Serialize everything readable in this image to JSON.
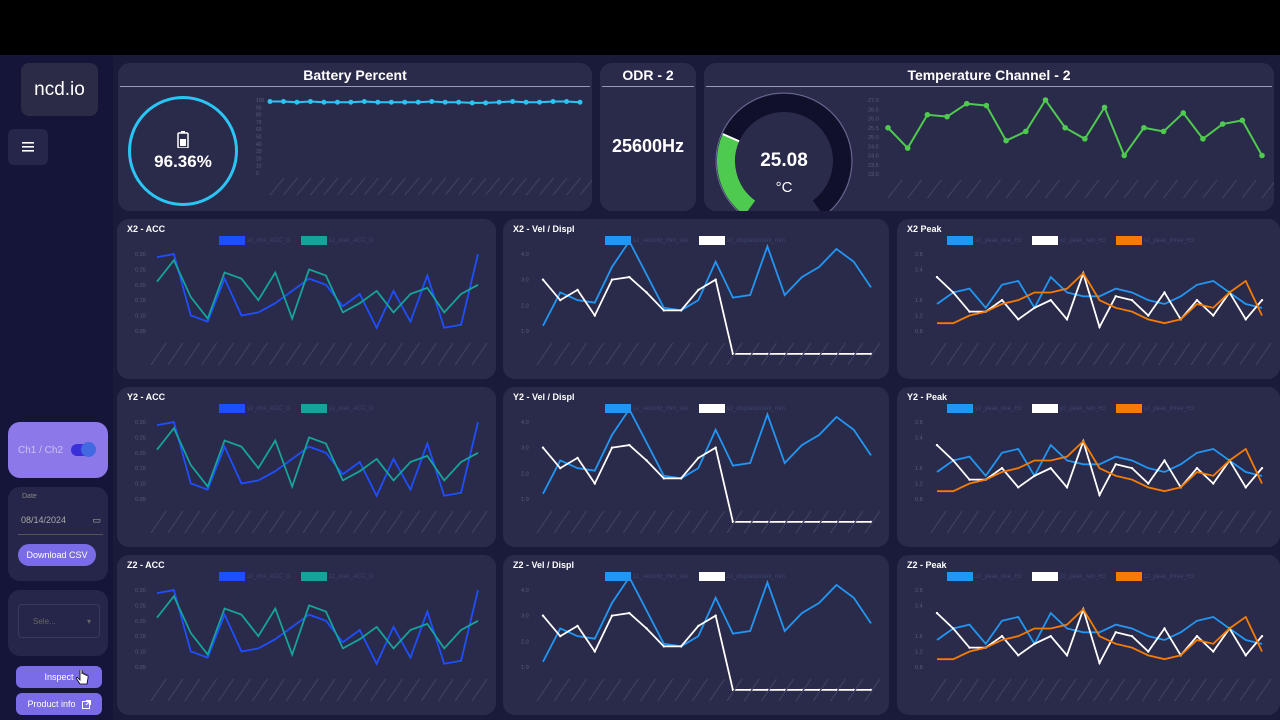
{
  "app": {
    "logo": "ncd.io"
  },
  "sidebar": {
    "channel_label": "Ch1 / Ch2",
    "date_label": "Date",
    "date_value": "08/14/2024",
    "download_label": "Download CSV",
    "select_placeholder": "Sele...",
    "inspect_label": "Inspect",
    "product_label": "Product info"
  },
  "battery": {
    "title": "Battery Percent",
    "value": "96.36%",
    "y_ticks": [
      "100",
      "90",
      "80",
      "70",
      "60",
      "50",
      "40",
      "30",
      "20",
      "10",
      "0"
    ],
    "series": [
      98,
      98,
      97,
      98,
      97,
      97,
      97,
      98,
      97,
      97,
      97,
      97,
      98,
      97,
      97,
      96,
      96,
      97,
      98,
      97,
      97,
      98,
      98,
      97
    ]
  },
  "odr": {
    "title": "ODR - 2",
    "value": "25600Hz"
  },
  "temperature": {
    "title": "Temperature Channel - 2",
    "value": "25.08",
    "unit": "°C",
    "gauge_fraction": 0.27,
    "colors": {
      "line": "#4ecb4e",
      "gauge": "#4ecb4e"
    },
    "y_ticks": [
      "27.0",
      "26.5",
      "26.0",
      "25.5",
      "25.0",
      "24.5",
      "24.0",
      "23.5",
      "23.0"
    ],
    "series": [
      25.5,
      24.4,
      26.2,
      26.1,
      26.8,
      26.7,
      24.8,
      25.3,
      27.0,
      25.5,
      24.9,
      26.6,
      24.0,
      25.5,
      25.3,
      26.3,
      24.9,
      25.7,
      25.9,
      24.0
    ]
  },
  "charts": [
    {
      "id": "x2-acc",
      "title": "X2 - ACC",
      "legend": [
        {
          "label": "x2_rms_ACC_G",
          "color": "#1e4fff"
        },
        {
          "label": "x2_max_ACC_G",
          "color": "#15a39a"
        }
      ],
      "y_ticks": [
        "0.30",
        "0.25",
        "0.20",
        "0.15",
        "0.10",
        "0.05"
      ],
      "series": [
        {
          "color": "#1e4fff",
          "values": [
            0.29,
            0.3,
            0.1,
            0.08,
            0.22,
            0.1,
            0.11,
            0.14,
            0.18,
            0.22,
            0.2,
            0.13,
            0.17,
            0.06,
            0.18,
            0.08,
            0.23,
            0.06,
            0.07,
            0.3
          ]
        },
        {
          "color": "#15a39a",
          "values": [
            0.21,
            0.28,
            0.16,
            0.09,
            0.24,
            0.22,
            0.15,
            0.24,
            0.09,
            0.25,
            0.23,
            0.11,
            0.14,
            0.18,
            0.11,
            0.17,
            0.19,
            0.11,
            0.17,
            0.2
          ]
        }
      ]
    },
    {
      "id": "x2-vel",
      "title": "X2 - Vel / Displ",
      "legend": [
        {
          "label": "x2_velocity_mm_sec",
          "color": "#2196f3"
        },
        {
          "label": "x2_displacement_mm",
          "color": "#ffffff"
        }
      ],
      "y_ticks": [
        "4.0",
        "3.0",
        "2.0",
        "1.0"
      ],
      "series": [
        {
          "color": "#2196f3",
          "values": [
            1.2,
            2.5,
            2.2,
            2.1,
            3.5,
            4.5,
            3.2,
            1.9,
            1.8,
            2.2,
            3.7,
            2.3,
            2.4,
            4.3,
            2.4,
            3.1,
            3.5,
            4.2,
            3.7,
            2.7
          ]
        },
        {
          "color": "#ffffff",
          "values": [
            3.0,
            2.2,
            2.6,
            1.6,
            3.0,
            3.1,
            2.5,
            1.8,
            1.8,
            2.6,
            3.0,
            0.1,
            0.1,
            0.1,
            0.1,
            0.1,
            0.1,
            0.1,
            0.1,
            0.1
          ]
        }
      ]
    },
    {
      "id": "x2-peak",
      "title": "X2 Peak",
      "legend": [
        {
          "label": "x2_peak_one_Hz",
          "color": "#2196f3"
        },
        {
          "label": "x2_peak_two_Hz",
          "color": "#ffffff"
        },
        {
          "label": "x2_peak_three_Hz",
          "color": "#f57c00"
        }
      ],
      "y_ticks": [
        "2.8",
        "2.4",
        "1.6",
        "1.2",
        "0.8"
      ],
      "series": [
        {
          "color": "#2196f3",
          "values": [
            1.5,
            1.8,
            1.9,
            1.4,
            2.0,
            2.1,
            1.4,
            2.2,
            1.8,
            1.7,
            1.7,
            1.9,
            1.8,
            1.6,
            1.5,
            1.7,
            2.0,
            2.1,
            1.8,
            1.5,
            1.4
          ]
        },
        {
          "color": "#ffffff",
          "values": [
            2.2,
            1.8,
            1.3,
            1.3,
            1.6,
            1.1,
            1.4,
            1.6,
            1.1,
            2.3,
            0.9,
            1.7,
            1.6,
            1.2,
            1.8,
            1.1,
            1.6,
            1.2,
            1.8,
            1.1,
            1.6
          ]
        },
        {
          "color": "#f57c00",
          "values": [
            1.0,
            1.0,
            1.2,
            1.3,
            1.5,
            1.6,
            1.8,
            1.8,
            1.9,
            2.3,
            1.6,
            1.4,
            1.3,
            1.1,
            1.0,
            1.1,
            1.5,
            1.4,
            1.8,
            2.1,
            1.2
          ]
        }
      ]
    },
    {
      "id": "y2-acc",
      "title": "Y2 - ACC",
      "legend": [
        {
          "label": "y2_rms_ACC_G",
          "color": "#1e4fff"
        },
        {
          "label": "y2_max_ACC_G",
          "color": "#15a39a"
        }
      ],
      "y_ticks": [
        "0.30",
        "0.25",
        "0.20",
        "0.15",
        "0.10",
        "0.05"
      ],
      "series": [
        {
          "color": "#1e4fff",
          "values": [
            0.29,
            0.3,
            0.1,
            0.08,
            0.22,
            0.1,
            0.11,
            0.14,
            0.18,
            0.22,
            0.2,
            0.13,
            0.17,
            0.06,
            0.18,
            0.08,
            0.23,
            0.06,
            0.07,
            0.3
          ]
        },
        {
          "color": "#15a39a",
          "values": [
            0.21,
            0.28,
            0.16,
            0.09,
            0.24,
            0.22,
            0.15,
            0.24,
            0.09,
            0.25,
            0.23,
            0.11,
            0.14,
            0.18,
            0.11,
            0.17,
            0.19,
            0.11,
            0.17,
            0.2
          ]
        }
      ]
    },
    {
      "id": "y2-vel",
      "title": "Y2 - Vel / Displ",
      "legend": [
        {
          "label": "y2_velocity_mm_sec",
          "color": "#2196f3"
        },
        {
          "label": "y2_displacement_mm",
          "color": "#ffffff"
        }
      ],
      "y_ticks": [
        "4.0",
        "3.0",
        "2.0",
        "1.0"
      ],
      "series": [
        {
          "color": "#2196f3",
          "values": [
            1.2,
            2.5,
            2.2,
            2.1,
            3.5,
            4.5,
            3.2,
            1.9,
            1.8,
            2.2,
            3.7,
            2.3,
            2.4,
            4.3,
            2.4,
            3.1,
            3.5,
            4.2,
            3.7,
            2.7
          ]
        },
        {
          "color": "#ffffff",
          "values": [
            3.0,
            2.2,
            2.6,
            1.6,
            3.0,
            3.1,
            2.5,
            1.8,
            1.8,
            2.6,
            3.0,
            0.1,
            0.1,
            0.1,
            0.1,
            0.1,
            0.1,
            0.1,
            0.1,
            0.1
          ]
        }
      ]
    },
    {
      "id": "y2-peak",
      "title": "Y2 - Peak",
      "legend": [
        {
          "label": "y2_peak_one_Hz",
          "color": "#2196f3"
        },
        {
          "label": "y2_peak_two_Hz",
          "color": "#ffffff"
        },
        {
          "label": "y2_peak_three_Hz",
          "color": "#f57c00"
        }
      ],
      "y_ticks": [
        "2.8",
        "2.4",
        "1.6",
        "1.2",
        "0.8"
      ],
      "series": [
        {
          "color": "#2196f3",
          "values": [
            1.5,
            1.8,
            1.9,
            1.4,
            2.0,
            2.1,
            1.4,
            2.2,
            1.8,
            1.7,
            1.7,
            1.9,
            1.8,
            1.6,
            1.5,
            1.7,
            2.0,
            2.1,
            1.8,
            1.5,
            1.4
          ]
        },
        {
          "color": "#ffffff",
          "values": [
            2.2,
            1.8,
            1.3,
            1.3,
            1.6,
            1.1,
            1.4,
            1.6,
            1.1,
            2.3,
            0.9,
            1.7,
            1.6,
            1.2,
            1.8,
            1.1,
            1.6,
            1.2,
            1.8,
            1.1,
            1.6
          ]
        },
        {
          "color": "#f57c00",
          "values": [
            1.0,
            1.0,
            1.2,
            1.3,
            1.5,
            1.6,
            1.8,
            1.8,
            1.9,
            2.3,
            1.6,
            1.4,
            1.3,
            1.1,
            1.0,
            1.1,
            1.5,
            1.4,
            1.8,
            2.1,
            1.2
          ]
        }
      ]
    },
    {
      "id": "z2-acc",
      "title": "Z2 - ACC",
      "legend": [
        {
          "label": "z2_rms_ACC_G",
          "color": "#1e4fff"
        },
        {
          "label": "z2_max_ACC_G",
          "color": "#15a39a"
        }
      ],
      "y_ticks": [
        "0.30",
        "0.25",
        "0.20",
        "0.15",
        "0.10",
        "0.05"
      ],
      "series": [
        {
          "color": "#1e4fff",
          "values": [
            0.29,
            0.3,
            0.1,
            0.08,
            0.22,
            0.1,
            0.11,
            0.14,
            0.18,
            0.22,
            0.2,
            0.13,
            0.17,
            0.06,
            0.18,
            0.08,
            0.23,
            0.06,
            0.07,
            0.3
          ]
        },
        {
          "color": "#15a39a",
          "values": [
            0.21,
            0.28,
            0.16,
            0.09,
            0.24,
            0.22,
            0.15,
            0.24,
            0.09,
            0.25,
            0.23,
            0.11,
            0.14,
            0.18,
            0.11,
            0.17,
            0.19,
            0.11,
            0.17,
            0.2
          ]
        }
      ]
    },
    {
      "id": "z2-vel",
      "title": "Z2 - Vel / Displ",
      "legend": [
        {
          "label": "z2_velocity_mm_sec",
          "color": "#2196f3"
        },
        {
          "label": "z2_displacement_mm",
          "color": "#ffffff"
        }
      ],
      "y_ticks": [
        "4.0",
        "3.0",
        "2.0",
        "1.0"
      ],
      "series": [
        {
          "color": "#2196f3",
          "values": [
            1.2,
            2.5,
            2.2,
            2.1,
            3.5,
            4.5,
            3.2,
            1.9,
            1.8,
            2.2,
            3.7,
            2.3,
            2.4,
            4.3,
            2.4,
            3.1,
            3.5,
            4.2,
            3.7,
            2.7
          ]
        },
        {
          "color": "#ffffff",
          "values": [
            3.0,
            2.2,
            2.6,
            1.6,
            3.0,
            3.1,
            2.5,
            1.8,
            1.8,
            2.6,
            3.0,
            0.1,
            0.1,
            0.1,
            0.1,
            0.1,
            0.1,
            0.1,
            0.1,
            0.1
          ]
        }
      ]
    },
    {
      "id": "z2-peak",
      "title": "Z2 - Peak",
      "legend": [
        {
          "label": "z2_peak_one_Hz",
          "color": "#2196f3"
        },
        {
          "label": "z2_peak_two_Hz",
          "color": "#ffffff"
        },
        {
          "label": "z2_peak_three_Hz",
          "color": "#f57c00"
        }
      ],
      "y_ticks": [
        "2.8",
        "2.4",
        "1.6",
        "1.2",
        "0.8"
      ],
      "series": [
        {
          "color": "#2196f3",
          "values": [
            1.5,
            1.8,
            1.9,
            1.4,
            2.0,
            2.1,
            1.4,
            2.2,
            1.8,
            1.7,
            1.7,
            1.9,
            1.8,
            1.6,
            1.5,
            1.7,
            2.0,
            2.1,
            1.8,
            1.5,
            1.4
          ]
        },
        {
          "color": "#ffffff",
          "values": [
            2.2,
            1.8,
            1.3,
            1.3,
            1.6,
            1.1,
            1.4,
            1.6,
            1.1,
            2.3,
            0.9,
            1.7,
            1.6,
            1.2,
            1.8,
            1.1,
            1.6,
            1.2,
            1.8,
            1.1,
            1.6
          ]
        },
        {
          "color": "#f57c00",
          "values": [
            1.0,
            1.0,
            1.2,
            1.3,
            1.5,
            1.6,
            1.8,
            1.8,
            1.9,
            2.3,
            1.6,
            1.4,
            1.3,
            1.1,
            1.0,
            1.1,
            1.5,
            1.4,
            1.8,
            2.1,
            1.2
          ]
        }
      ]
    }
  ]
}
